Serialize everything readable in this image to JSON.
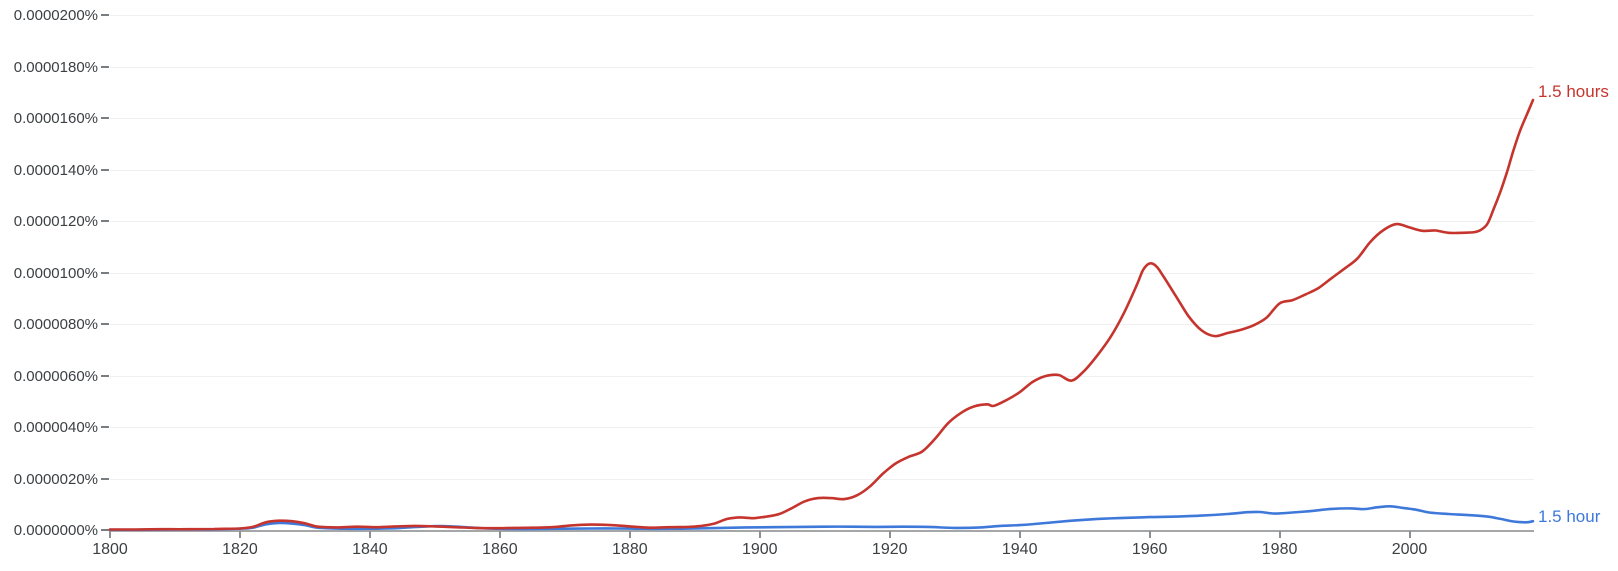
{
  "chart": {
    "kind": "Google Ngram Viewer frequency chart",
    "background": "#ffffff",
    "accent_colors": {
      "red": "#c5352e",
      "blue": "#3e79da"
    },
    "end_labels": [
      {
        "text": "1.5 hours",
        "color": "#c5352e"
      },
      {
        "text": "1.5 hour",
        "color": "#3e79da"
      }
    ]
  },
  "chart_data": {
    "type": "line",
    "title": "",
    "xlabel": "",
    "ylabel": "",
    "grid": true,
    "legend_position": "end-of-line-right",
    "xlim": [
      1800,
      2019
    ],
    "ylim": [
      0,
      2e-05
    ],
    "x_tick_labels": [
      "1800",
      "1820",
      "1840",
      "1860",
      "1880",
      "1900",
      "1920",
      "1940",
      "1960",
      "1980",
      "2000"
    ],
    "y_tick_labels": [
      "0.0000000%",
      "0.0000020%",
      "0.0000040%",
      "0.0000060%",
      "0.0000080%",
      "0.0000100%",
      "0.0000120%",
      "0.0000140%",
      "0.0000160%",
      "0.0000180%",
      "0.0000200%"
    ],
    "y_value_scale": 1e-07,
    "y_unit_note": "series point values are in units of 1e-7 percent of corpus",
    "series": [
      {
        "name": "1.5 hours",
        "color": "#c5352e",
        "points": [
          [
            1800,
            0.2
          ],
          [
            1804,
            0.2
          ],
          [
            1808,
            0.3
          ],
          [
            1812,
            0.3
          ],
          [
            1816,
            0.4
          ],
          [
            1820,
            0.6
          ],
          [
            1822,
            1.2
          ],
          [
            1824,
            3.0
          ],
          [
            1826,
            3.6
          ],
          [
            1828,
            3.4
          ],
          [
            1830,
            2.6
          ],
          [
            1832,
            1.3
          ],
          [
            1835,
            1.0
          ],
          [
            1838,
            1.3
          ],
          [
            1841,
            1.1
          ],
          [
            1844,
            1.4
          ],
          [
            1847,
            1.6
          ],
          [
            1850,
            1.4
          ],
          [
            1853,
            1.1
          ],
          [
            1856,
            0.8
          ],
          [
            1859,
            0.7
          ],
          [
            1862,
            0.8
          ],
          [
            1865,
            0.9
          ],
          [
            1868,
            1.1
          ],
          [
            1871,
            1.8
          ],
          [
            1874,
            2.1
          ],
          [
            1877,
            1.9
          ],
          [
            1880,
            1.4
          ],
          [
            1883,
            0.9
          ],
          [
            1886,
            1.1
          ],
          [
            1889,
            1.2
          ],
          [
            1891,
            1.6
          ],
          [
            1893,
            2.5
          ],
          [
            1895,
            4.3
          ],
          [
            1897,
            4.9
          ],
          [
            1899,
            4.6
          ],
          [
            1901,
            5.2
          ],
          [
            1903,
            6.2
          ],
          [
            1905,
            8.6
          ],
          [
            1907,
            11.2
          ],
          [
            1909,
            12.4
          ],
          [
            1911,
            12.4
          ],
          [
            1913,
            12.0
          ],
          [
            1915,
            13.5
          ],
          [
            1917,
            17.0
          ],
          [
            1919,
            22.0
          ],
          [
            1921,
            26.0
          ],
          [
            1923,
            28.5
          ],
          [
            1925,
            30.5
          ],
          [
            1927,
            35.5
          ],
          [
            1929,
            41.5
          ],
          [
            1931,
            45.5
          ],
          [
            1933,
            48.0
          ],
          [
            1935,
            48.8
          ],
          [
            1936,
            48.2
          ],
          [
            1938,
            50.5
          ],
          [
            1940,
            53.5
          ],
          [
            1942,
            57.5
          ],
          [
            1944,
            59.8
          ],
          [
            1946,
            60.2
          ],
          [
            1948,
            58.0
          ],
          [
            1950,
            62.0
          ],
          [
            1952,
            68.0
          ],
          [
            1954,
            75.0
          ],
          [
            1956,
            84.0
          ],
          [
            1958,
            95.0
          ],
          [
            1959,
            101.0
          ],
          [
            1960,
            103.5
          ],
          [
            1961,
            102.5
          ],
          [
            1962,
            99.0
          ],
          [
            1964,
            91.0
          ],
          [
            1966,
            83.0
          ],
          [
            1968,
            77.5
          ],
          [
            1970,
            75.3
          ],
          [
            1972,
            76.5
          ],
          [
            1974,
            77.7
          ],
          [
            1976,
            79.5
          ],
          [
            1978,
            82.5
          ],
          [
            1980,
            88.0
          ],
          [
            1982,
            89.3
          ],
          [
            1984,
            91.5
          ],
          [
            1986,
            94.0
          ],
          [
            1988,
            97.8
          ],
          [
            1990,
            101.5
          ],
          [
            1992,
            105.5
          ],
          [
            1994,
            112.0
          ],
          [
            1996,
            116.5
          ],
          [
            1998,
            118.8
          ],
          [
            2000,
            117.5
          ],
          [
            2002,
            116.2
          ],
          [
            2004,
            116.3
          ],
          [
            2006,
            115.4
          ],
          [
            2008,
            115.4
          ],
          [
            2010,
            115.7
          ],
          [
            2011,
            116.6
          ],
          [
            2012,
            119.0
          ],
          [
            2013,
            125.0
          ],
          [
            2014,
            131.5
          ],
          [
            2015,
            139.0
          ],
          [
            2016,
            147.5
          ],
          [
            2017,
            155.0
          ],
          [
            2018,
            161.0
          ],
          [
            2019,
            167.0
          ]
        ]
      },
      {
        "name": "1.5 hour",
        "color": "#3e79da",
        "points": [
          [
            1800,
            0.1
          ],
          [
            1805,
            0.1
          ],
          [
            1810,
            0.2
          ],
          [
            1815,
            0.2
          ],
          [
            1820,
            0.5
          ],
          [
            1822,
            0.9
          ],
          [
            1824,
            2.2
          ],
          [
            1826,
            2.7
          ],
          [
            1828,
            2.5
          ],
          [
            1830,
            1.9
          ],
          [
            1832,
            0.9
          ],
          [
            1836,
            0.5
          ],
          [
            1840,
            0.5
          ],
          [
            1844,
            0.7
          ],
          [
            1848,
            1.3
          ],
          [
            1851,
            1.5
          ],
          [
            1854,
            1.2
          ],
          [
            1858,
            0.6
          ],
          [
            1862,
            0.4
          ],
          [
            1866,
            0.4
          ],
          [
            1870,
            0.5
          ],
          [
            1874,
            0.6
          ],
          [
            1878,
            0.6
          ],
          [
            1882,
            0.5
          ],
          [
            1886,
            0.5
          ],
          [
            1890,
            0.6
          ],
          [
            1894,
            0.8
          ],
          [
            1898,
            1.0
          ],
          [
            1902,
            1.1
          ],
          [
            1906,
            1.2
          ],
          [
            1910,
            1.3
          ],
          [
            1914,
            1.3
          ],
          [
            1918,
            1.2
          ],
          [
            1922,
            1.3
          ],
          [
            1926,
            1.2
          ],
          [
            1930,
            0.8
          ],
          [
            1934,
            1.0
          ],
          [
            1937,
            1.6
          ],
          [
            1940,
            1.9
          ],
          [
            1944,
            2.7
          ],
          [
            1948,
            3.6
          ],
          [
            1952,
            4.3
          ],
          [
            1956,
            4.7
          ],
          [
            1960,
            5.0
          ],
          [
            1964,
            5.2
          ],
          [
            1968,
            5.6
          ],
          [
            1972,
            6.2
          ],
          [
            1975,
            6.9
          ],
          [
            1977,
            7.0
          ],
          [
            1979,
            6.4
          ],
          [
            1981,
            6.6
          ],
          [
            1983,
            7.0
          ],
          [
            1985,
            7.4
          ],
          [
            1988,
            8.2
          ],
          [
            1991,
            8.4
          ],
          [
            1993,
            8.1
          ],
          [
            1995,
            8.8
          ],
          [
            1997,
            9.2
          ],
          [
            1999,
            8.6
          ],
          [
            2001,
            7.9
          ],
          [
            2003,
            6.8
          ],
          [
            2006,
            6.2
          ],
          [
            2009,
            5.8
          ],
          [
            2012,
            5.2
          ],
          [
            2014,
            4.3
          ],
          [
            2016,
            3.3
          ],
          [
            2018,
            3.0
          ],
          [
            2019,
            3.4
          ]
        ]
      }
    ]
  }
}
